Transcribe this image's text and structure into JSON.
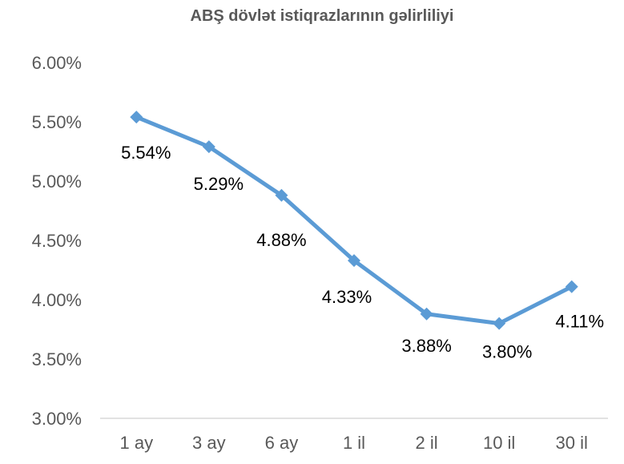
{
  "chart_data": {
    "type": "line",
    "title": "ABŞ dövlət istiqrazlarının gəlirliliyi",
    "categories": [
      "1 ay",
      "3 ay",
      "6 ay",
      "1 il",
      "2 il",
      "10 il",
      "30 il"
    ],
    "values": [
      5.54,
      5.29,
      4.88,
      4.33,
      3.88,
      3.8,
      4.11
    ],
    "data_labels": [
      "5.54%",
      "5.29%",
      "4.88%",
      "4.33%",
      "3.88%",
      "3.80%",
      "4.11%"
    ],
    "y_ticks": [
      "3.00%",
      "3.50%",
      "4.00%",
      "4.50%",
      "5.00%",
      "5.50%",
      "6.00%"
    ],
    "ylim": [
      3.0,
      6.0
    ],
    "xlabel": "",
    "ylabel": "",
    "grid": false,
    "legend": "none",
    "marker": "diamond",
    "colors": {
      "series": "#5B9BD5",
      "axis": "#D9D9D9",
      "text": "#595959"
    }
  }
}
